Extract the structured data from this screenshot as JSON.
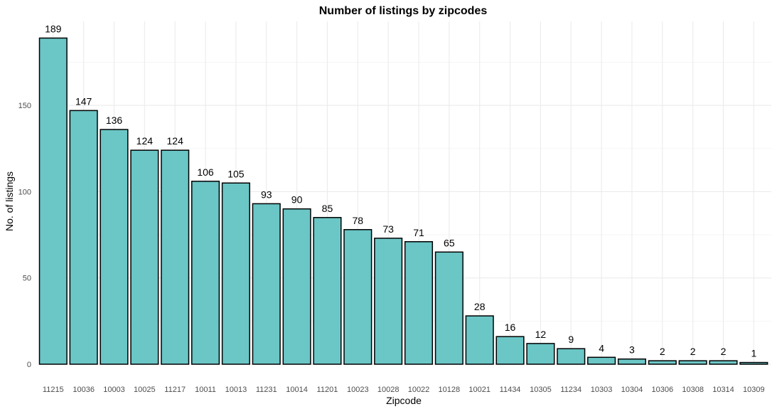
{
  "chart_data": {
    "type": "bar",
    "title": "Number of listings by zipcodes",
    "xlabel": "Zipcode",
    "ylabel": "No. of listings",
    "categories": [
      "11215",
      "10036",
      "10003",
      "10025",
      "11217",
      "10011",
      "10013",
      "11231",
      "10014",
      "11201",
      "10023",
      "10028",
      "10022",
      "10128",
      "10021",
      "11434",
      "10305",
      "11234",
      "10303",
      "10304",
      "10306",
      "10308",
      "10314",
      "10309"
    ],
    "values": [
      189,
      147,
      136,
      124,
      124,
      106,
      105,
      93,
      90,
      85,
      78,
      73,
      71,
      65,
      28,
      16,
      12,
      9,
      4,
      3,
      2,
      2,
      2,
      1
    ],
    "yticks": [
      0,
      50,
      100,
      150
    ],
    "ylim": [
      0,
      198
    ],
    "grid": true,
    "bar_color": "#6BC6C6",
    "bar_border_color": "#000000",
    "data_labels": true
  }
}
